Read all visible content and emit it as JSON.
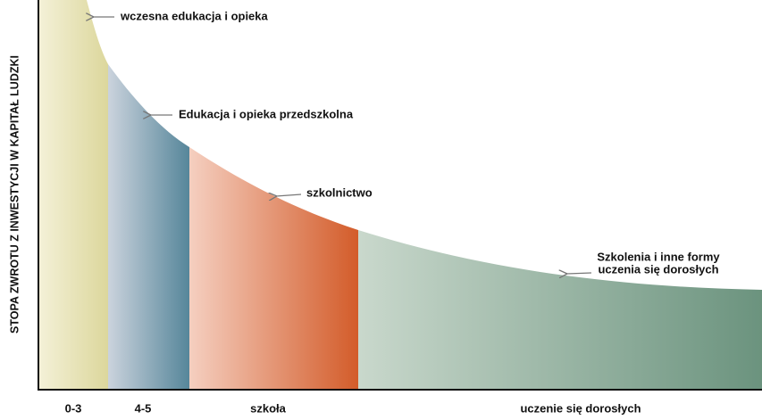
{
  "y_axis_label": "STOPA ZWROTU Z INWESTYCJI W KAPITAŁ LUDZKI",
  "stages": [
    "0-3",
    "4-5",
    "szkoła",
    "uczenie się dorosłych"
  ],
  "annotations": [
    {
      "lines": [
        "wczesna edukacja i opieka"
      ]
    },
    {
      "lines": [
        "Edukacja i opieka przedszkolna"
      ]
    },
    {
      "lines": [
        "szkolnictwo"
      ]
    },
    {
      "lines": [
        "Szkolenia i inne formy",
        "uczenia się dorosłych"
      ]
    }
  ]
}
